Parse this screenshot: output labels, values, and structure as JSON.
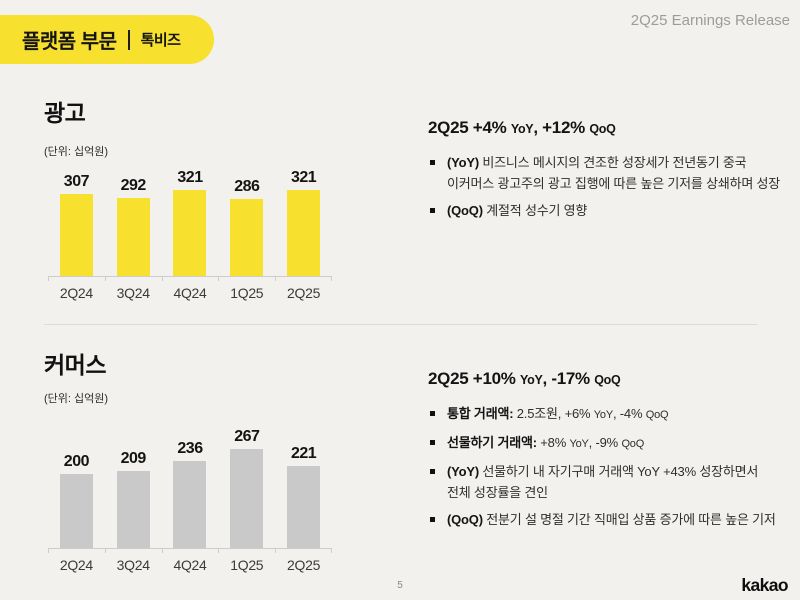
{
  "page": {
    "background": "#F2F1EE",
    "top_right_label": "2Q25 Earnings Release",
    "page_number": "5",
    "brand_logo": "kakao"
  },
  "header": {
    "title": "플랫폼 부문",
    "subtitle": "톡비즈",
    "pill_color": "#F8E02E"
  },
  "colors": {
    "yellow_accent": "#F8E02E",
    "gray_bar": "#C9C9C9",
    "divider": "#DCDCDC"
  },
  "sections": [
    {
      "title": "광고",
      "unit_label": "(단위: 십억원)",
      "heading_parts": [
        {
          "t": "2Q25 +4% ",
          "s": "big"
        },
        {
          "t": "YoY",
          "s": "small"
        },
        {
          "t": ", +12% ",
          "s": "big"
        },
        {
          "t": "QoQ",
          "s": "small"
        }
      ],
      "bullets": [
        {
          "lines": [
            [
              {
                "t": "(YoY) ",
                "s": "bold"
              },
              {
                "t": "비즈니스 메시지의 견조한 성장세가 전년동기 중국",
                "s": "normal"
              }
            ],
            [
              {
                "t": "이커머스 광고주의 광고 집행에 따른 높은 기저를 상쇄하며 성장",
                "s": "normal"
              }
            ]
          ]
        },
        {
          "lines": [
            [
              {
                "t": "(QoQ) ",
                "s": "bold"
              },
              {
                "t": "계절적 성수기 영향",
                "s": "normal"
              }
            ]
          ]
        }
      ]
    },
    {
      "title": "커머스",
      "unit_label": "(단위: 십억원)",
      "heading_parts": [
        {
          "t": "2Q25 +10% ",
          "s": "big"
        },
        {
          "t": "YoY",
          "s": "small"
        },
        {
          "t": ", -17% ",
          "s": "big"
        },
        {
          "t": "QoQ",
          "s": "small"
        }
      ],
      "bullets": [
        {
          "lines": [
            [
              {
                "t": "통합 거래액: ",
                "s": "bold"
              },
              {
                "t": "2.5조원, +6% ",
                "s": "normal"
              },
              {
                "t": "YoY",
                "s": "small"
              },
              {
                "t": ", -4% ",
                "s": "normal"
              },
              {
                "t": "QoQ",
                "s": "small"
              }
            ]
          ]
        },
        {
          "lines": [
            [
              {
                "t": "선물하기 거래액: ",
                "s": "bold"
              },
              {
                "t": "+8% ",
                "s": "normal"
              },
              {
                "t": "YoY",
                "s": "small"
              },
              {
                "t": ", -9% ",
                "s": "normal"
              },
              {
                "t": "QoQ",
                "s": "small"
              }
            ]
          ]
        },
        {
          "lines": [
            [
              {
                "t": "(YoY) ",
                "s": "bold"
              },
              {
                "t": "선물하기 내 자기구매 거래액 YoY +43% 성장하면서",
                "s": "normal"
              }
            ],
            [
              {
                "t": "전체 성장률을 견인",
                "s": "normal"
              }
            ]
          ]
        },
        {
          "lines": [
            [
              {
                "t": "(QoQ) ",
                "s": "bold"
              },
              {
                "t": "전분기 설 명절 기간 직매입 상품 증가에 따른 높은 기저",
                "s": "normal"
              }
            ]
          ]
        }
      ]
    }
  ],
  "chart_data": [
    {
      "type": "bar",
      "title": "광고",
      "unit": "십억원",
      "categories": [
        "2Q24",
        "3Q24",
        "4Q24",
        "1Q25",
        "2Q25"
      ],
      "values": [
        307,
        292,
        321,
        286,
        321
      ],
      "bar_color": "#F8E02E",
      "ylim": [
        0,
        350
      ],
      "grid": false,
      "legend": "none",
      "value_labels": true
    },
    {
      "type": "bar",
      "title": "커머스",
      "unit": "십억원",
      "categories": [
        "2Q24",
        "3Q24",
        "4Q24",
        "1Q25",
        "2Q25"
      ],
      "values": [
        200,
        209,
        236,
        267,
        221
      ],
      "bar_color": "#C9C9C9",
      "ylim": [
        0,
        300
      ],
      "grid": false,
      "legend": "none",
      "value_labels": true
    }
  ]
}
